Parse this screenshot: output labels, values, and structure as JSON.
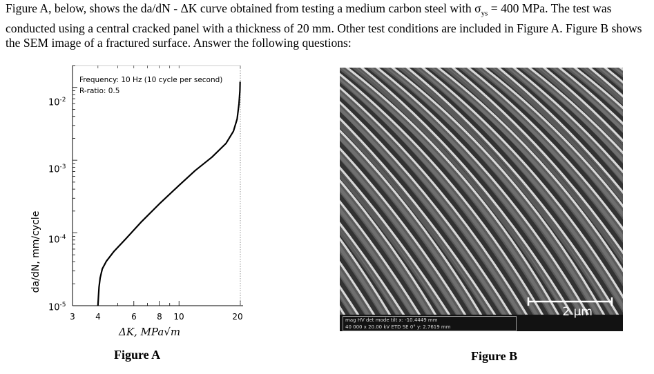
{
  "intro": {
    "text_part1": "Figure A, below, shows the da/dN - ΔK curve obtained from testing a medium carbon steel with σ",
    "sub": "ys",
    "text_part2": " = 400 MPa. The test was conducted using a central cracked panel with a thickness of 20 mm. Other test conditions are included in Figure A. Figure B shows the SEM image of a fractured surface. Answer the following questions:"
  },
  "figureA": {
    "caption": "Figure A",
    "conditions": [
      "Frequency: 10 Hz (10 cycle per second)",
      "R-ratio: 0.5"
    ],
    "chart_data": {
      "type": "line",
      "title": "",
      "xlabel": "ΔK, MPa√m",
      "ylabel": "da/dN, mm/cycle",
      "x_ticks": [
        "3",
        "4",
        "6",
        "8",
        "10",
        "20"
      ],
      "y_ticks": [
        {
          "base": "10",
          "exp": "-2"
        },
        {
          "base": "10",
          "exp": "-3"
        },
        {
          "base": "10",
          "exp": "-4"
        },
        {
          "base": "10",
          "exp": "-5"
        }
      ],
      "xscale": "log",
      "yscale": "log",
      "xlim": [
        3,
        20
      ],
      "ylim": [
        1e-05,
        0.02
      ],
      "series": [
        {
          "x": [
            4.0,
            4.02,
            4.05,
            4.1,
            4.2,
            4.4,
            4.8,
            5.5,
            6.5,
            8.0,
            10.0,
            12.0,
            14.5,
            17.0,
            18.5,
            19.3,
            19.7,
            19.9,
            19.95
          ],
          "y": [
            1e-05,
            1.3e-05,
            1.8e-05,
            2.4e-05,
            3.2e-05,
            4.1e-05,
            5.6e-05,
            8.4e-05,
            0.00014,
            0.00025,
            0.00045,
            0.00072,
            0.0011,
            0.0017,
            0.0025,
            0.0037,
            0.006,
            0.009,
            0.012
          ]
        }
      ],
      "reference_line": {
        "x": 20,
        "style": "dotted"
      }
    }
  },
  "figureB": {
    "caption": "Figure B",
    "scale_bar": "2 μm",
    "info_headers": "mag    HV    det  mode  tilt  x: -10.4449 mm",
    "info_values": "40 000 x  20.00 kV  ETD   SE   0°   y: 2.7619 mm",
    "colors": {
      "background": "#5a5a5a",
      "striation_light": "#d8d8d8",
      "striation_dark": "#262626"
    }
  }
}
